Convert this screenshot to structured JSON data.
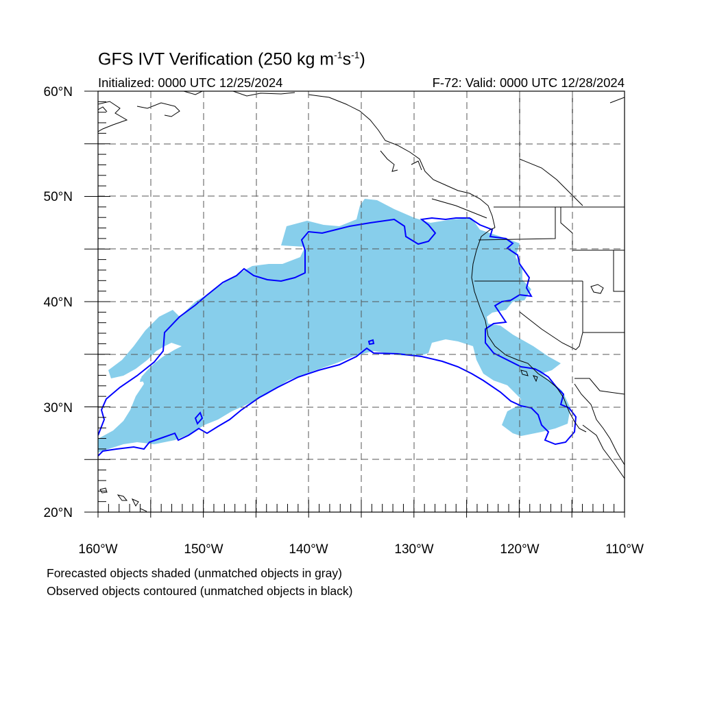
{
  "title": {
    "prefix": "GFS IVT Verification (250 kg m",
    "sup1": "-1",
    "mid": "s",
    "sup2": "-1",
    "suffix": ")"
  },
  "initialized": "Initialized: 0000 UTC 12/25/2024",
  "valid": "F-72: Valid: 0000 UTC 12/28/2024",
  "map": {
    "projection": "cylindrical-equidistant",
    "lon_range": [
      -160,
      -110
    ],
    "lat_range": [
      20,
      60
    ],
    "grid_step_deg": 5,
    "lon_labels": [
      "160°W",
      "150°W",
      "140°W",
      "130°W",
      "120°W",
      "110°W"
    ],
    "lat_labels": [
      "20°N",
      "30°N",
      "40°N",
      "50°N",
      "60°N"
    ],
    "forecast_fill_color": "#87ceeb",
    "observed_contour_color": "#0000ff",
    "coast_color": "#000000"
  },
  "legend": {
    "line1": "Forecasted objects shaded (unmatched objects in gray)",
    "line2": "Observed objects contoured (unmatched objects in black)"
  }
}
